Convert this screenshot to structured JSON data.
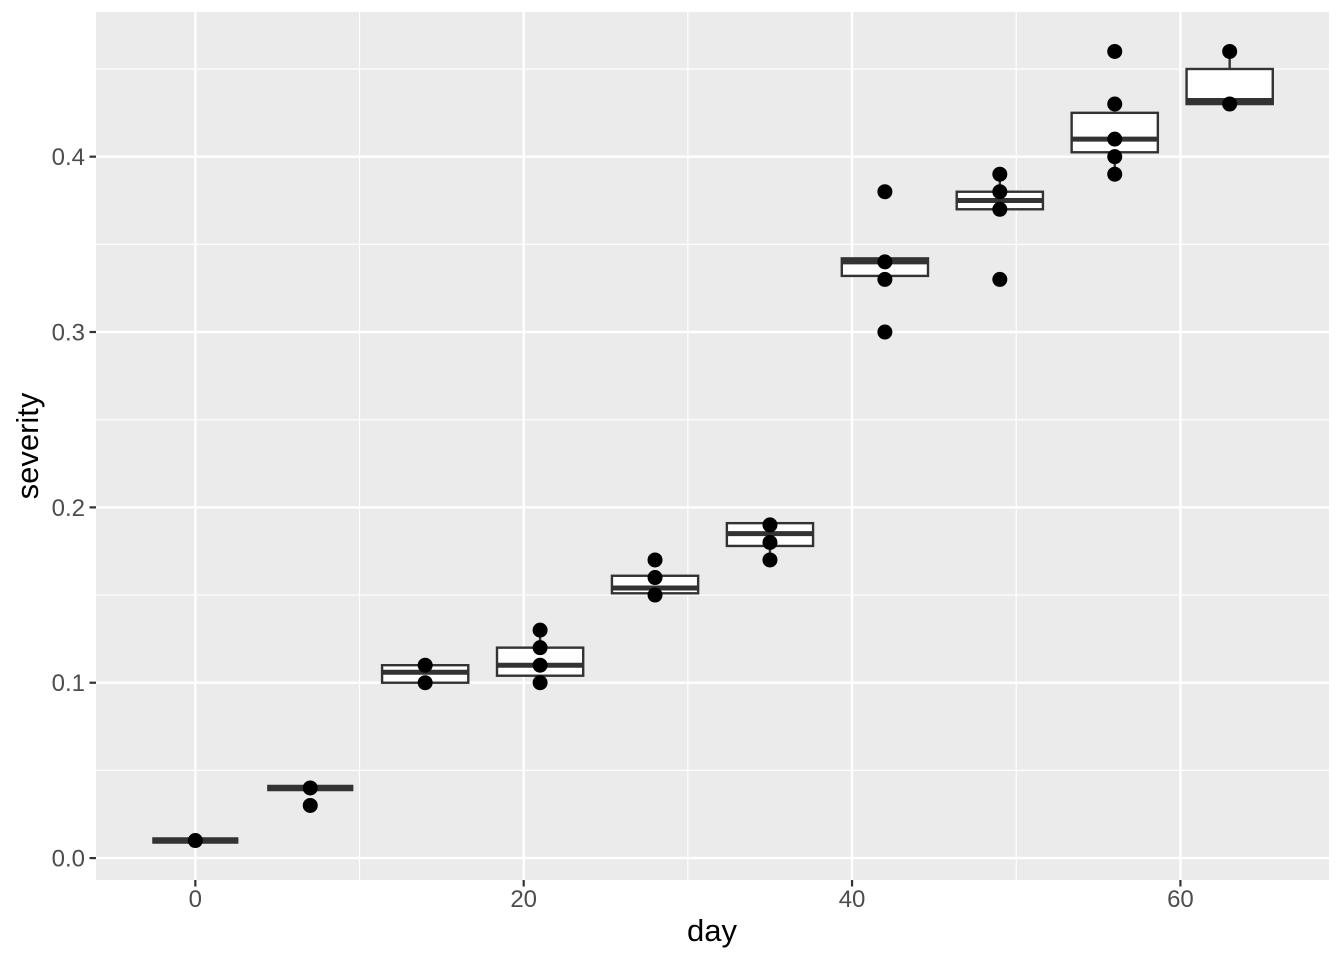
{
  "chart_data": {
    "type": "boxplot",
    "title": "",
    "xlabel": "day",
    "ylabel": "severity",
    "legend": "none",
    "grid": {
      "major": true,
      "minor": true
    },
    "x_ticks": [
      0,
      20,
      40,
      60
    ],
    "x_tick_labels": [
      "0",
      "20",
      "40",
      "60"
    ],
    "x_minor_ticks": [
      10,
      30,
      50
    ],
    "y_ticks": [
      0.0,
      0.1,
      0.2,
      0.3,
      0.4
    ],
    "y_tick_labels": [
      "0.0",
      "0.1",
      "0.2",
      "0.3",
      "0.4"
    ],
    "y_minor_ticks": [
      0.05,
      0.15,
      0.25,
      0.35,
      0.45
    ],
    "xlim": [
      -6.05,
      69.05
    ],
    "ylim": [
      -0.0125,
      0.4825
    ],
    "box_width_days": 5.25,
    "colors": {
      "panel_background": "#EBEBEB",
      "gridline": "#FFFFFF",
      "box_fill": "#FFFFFF",
      "box_stroke": "#333333",
      "point": "#000000",
      "axis_text": "#4D4D4D",
      "axis_title": "#000000",
      "tick_mark": "#333333"
    },
    "groups": [
      {
        "day": 0,
        "points": [
          0.01
        ],
        "q1": 0.01,
        "median": 0.01,
        "q3": 0.01,
        "whisker_low": 0.01,
        "whisker_high": 0.01
      },
      {
        "day": 7,
        "points": [
          0.04,
          0.03
        ],
        "q1": 0.04,
        "median": 0.04,
        "q3": 0.04,
        "whisker_low": 0.04,
        "whisker_high": 0.04
      },
      {
        "day": 14,
        "points": [
          0.11,
          0.1
        ],
        "q1": 0.1,
        "median": 0.106,
        "q3": 0.11,
        "whisker_low": 0.1,
        "whisker_high": 0.11
      },
      {
        "day": 21,
        "points": [
          0.13,
          0.12,
          0.11,
          0.1
        ],
        "q1": 0.104,
        "median": 0.11,
        "q3": 0.12,
        "whisker_low": 0.104,
        "whisker_high": 0.13
      },
      {
        "day": 28,
        "points": [
          0.17,
          0.16,
          0.15
        ],
        "q1": 0.151,
        "median": 0.154,
        "q3": 0.161,
        "whisker_low": 0.151,
        "whisker_high": 0.161
      },
      {
        "day": 35,
        "points": [
          0.19,
          0.18,
          0.17
        ],
        "q1": 0.178,
        "median": 0.185,
        "q3": 0.191,
        "whisker_low": 0.17,
        "whisker_high": 0.191
      },
      {
        "day": 42,
        "points": [
          0.38,
          0.34,
          0.33,
          0.3
        ],
        "q1": 0.332,
        "median": 0.34,
        "q3": 0.342,
        "whisker_low": 0.332,
        "whisker_high": 0.342
      },
      {
        "day": 49,
        "points": [
          0.39,
          0.38,
          0.37,
          0.33
        ],
        "q1": 0.37,
        "median": 0.375,
        "q3": 0.38,
        "whisker_low": 0.37,
        "whisker_high": 0.39
      },
      {
        "day": 56,
        "points": [
          0.46,
          0.43,
          0.41,
          0.4,
          0.39
        ],
        "q1": 0.4025,
        "median": 0.41,
        "q3": 0.425,
        "whisker_low": 0.39,
        "whisker_high": 0.425
      },
      {
        "day": 63,
        "points": [
          0.46,
          0.43
        ],
        "q1": 0.43,
        "median": 0.432,
        "q3": 0.45,
        "whisker_low": 0.43,
        "whisker_high": 0.46
      }
    ]
  }
}
